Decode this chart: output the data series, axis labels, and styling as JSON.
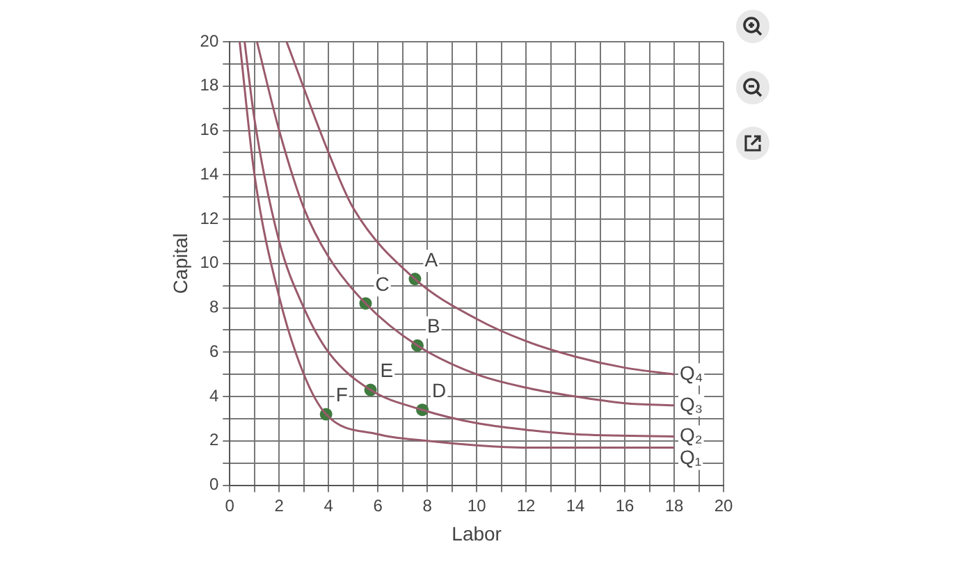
{
  "chart_data": {
    "type": "line",
    "xlabel": "Labor",
    "ylabel": "Capital",
    "xlim": [
      0,
      20
    ],
    "ylim": [
      0,
      20
    ],
    "xticks": [
      0,
      {
        "value": 1,
        "label": null
      },
      2,
      {
        "value": 3,
        "label": null
      },
      4,
      {
        "value": 5,
        "label": null
      },
      6,
      {
        "value": 7,
        "label": null
      },
      8,
      {
        "value": 9,
        "label": null
      },
      10,
      {
        "value": 11,
        "label": null
      },
      12,
      {
        "value": 13,
        "label": null
      },
      14,
      {
        "value": 15,
        "label": null
      },
      16,
      {
        "value": 17,
        "label": null
      },
      18,
      {
        "value": 19,
        "label": null
      },
      20
    ],
    "yticks": [
      0,
      {
        "value": 1,
        "label": null
      },
      2,
      {
        "value": 3,
        "label": null
      },
      4,
      {
        "value": 5,
        "label": null
      },
      6,
      {
        "value": 7,
        "label": null
      },
      8,
      {
        "value": 9,
        "label": null
      },
      10,
      {
        "value": 11,
        "label": null
      },
      12,
      {
        "value": 13,
        "label": null
      },
      14,
      {
        "value": 15,
        "label": null
      },
      16,
      {
        "value": 17,
        "label": null
      },
      18,
      {
        "value": 19,
        "label": null
      },
      20
    ],
    "grid": true,
    "series": [
      {
        "name": "Q₄",
        "marker": "none",
        "color": "#9a5a6c",
        "x": [
          2.3,
          4,
          5,
          7.5,
          10,
          12,
          14,
          16,
          18
        ],
        "values": [
          20,
          15,
          12.5,
          9.3,
          7.5,
          6.5,
          5.8,
          5.3,
          5
        ]
      },
      {
        "name": "Q₃",
        "marker": "none",
        "color": "#9a5a6c",
        "x": [
          1.1,
          2,
          3,
          4,
          5.5,
          7.6,
          10,
          12,
          14,
          16,
          18
        ],
        "values": [
          20,
          16,
          12.5,
          10.3,
          8.2,
          6.3,
          5,
          4.4,
          4,
          3.7,
          3.6
        ]
      },
      {
        "name": "Q₂",
        "marker": "none",
        "color": "#9a5a6c",
        "x": [
          0.6,
          1,
          2,
          3,
          4,
          5.7,
          7.8,
          10,
          12,
          14,
          18
        ],
        "values": [
          20,
          16.5,
          11,
          8,
          6,
          4.3,
          3.4,
          2.8,
          2.5,
          2.3,
          2.2
        ]
      },
      {
        "name": "Q₁",
        "marker": "none",
        "color": "#9a5a6c",
        "x": [
          0.4,
          1,
          2,
          3,
          3.9,
          6,
          8,
          10,
          12,
          18
        ],
        "values": [
          20,
          14,
          8.5,
          5,
          3.2,
          2.3,
          2,
          1.8,
          1.7,
          1.7
        ]
      },
      {
        "type": "scatter",
        "marker": "circle",
        "color": "#3f7a3f",
        "x": [
          7.5,
          5.5,
          7.6,
          5.7,
          7.8,
          3.9
        ],
        "values": [
          9.3,
          8.2,
          6.3,
          4.3,
          3.4,
          3.2
        ]
      }
    ],
    "annotations": [
      {
        "text": "A",
        "x": 7.5,
        "y": 9.3
      },
      {
        "text": "C",
        "x": 5.5,
        "y": 8.2
      },
      {
        "text": "B",
        "x": 7.6,
        "y": 6.3
      },
      {
        "text": "E",
        "x": 5.7,
        "y": 4.3
      },
      {
        "text": "D",
        "x": 7.8,
        "y": 3.4
      },
      {
        "text": "F",
        "x": 3.9,
        "y": 3.2
      }
    ]
  }
}
